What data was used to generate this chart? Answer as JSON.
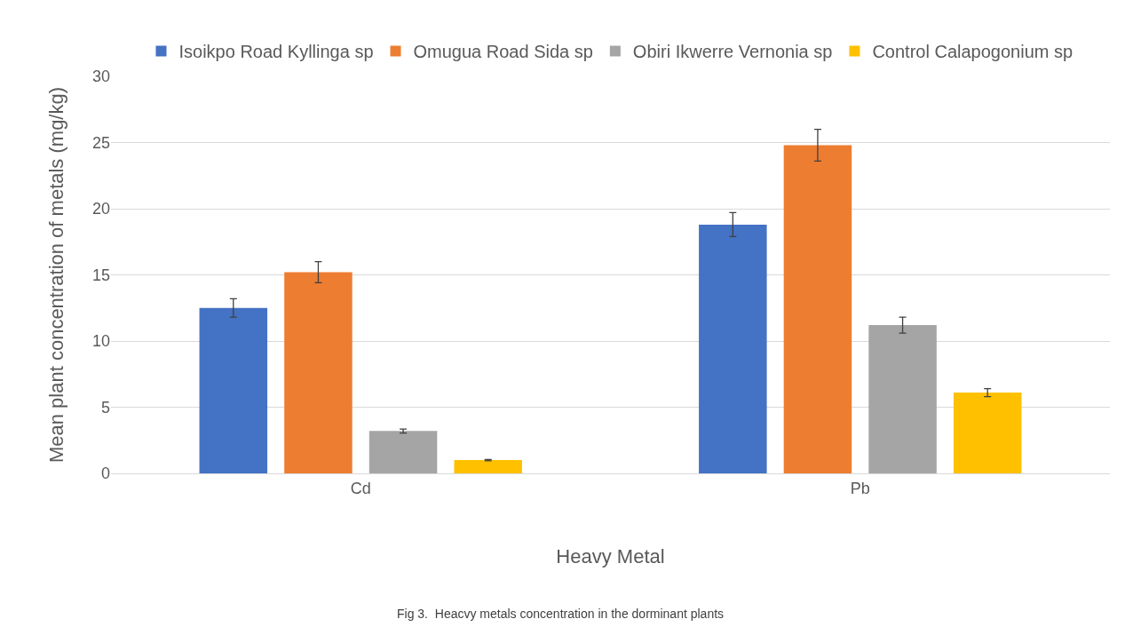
{
  "chart_data": {
    "type": "bar",
    "ylabel": "Mean plant concentration of metals (mg/kg)",
    "xlabel": "Heavy Metal",
    "categories": [
      "Cd",
      "Pb"
    ],
    "series": [
      {
        "name": "Isoikpo Road Kyllinga sp",
        "color": "#4472c4",
        "values": [
          12.5,
          18.8
        ],
        "errors": [
          0.7,
          0.9
        ]
      },
      {
        "name": "Omugua Road Sida sp",
        "color": "#ed7d31",
        "values": [
          15.2,
          24.8
        ],
        "errors": [
          0.8,
          1.2
        ]
      },
      {
        "name": "Obiri Ikwerre Vernonia sp",
        "color": "#a5a5a5",
        "values": [
          3.2,
          11.2
        ],
        "errors": [
          0.15,
          0.6
        ]
      },
      {
        "name": "Control Calapogonium sp",
        "color": "#ffc000",
        "values": [
          1.0,
          6.1
        ],
        "errors": [
          0.05,
          0.3
        ]
      }
    ],
    "ylim": [
      0,
      30
    ],
    "yticks": [
      0,
      5,
      10,
      15,
      20,
      25,
      30
    ],
    "grid": "y",
    "legend": "top",
    "annotations": [
      "Fig 3.  Heacvy metals concentration in the dorminant plants"
    ]
  }
}
